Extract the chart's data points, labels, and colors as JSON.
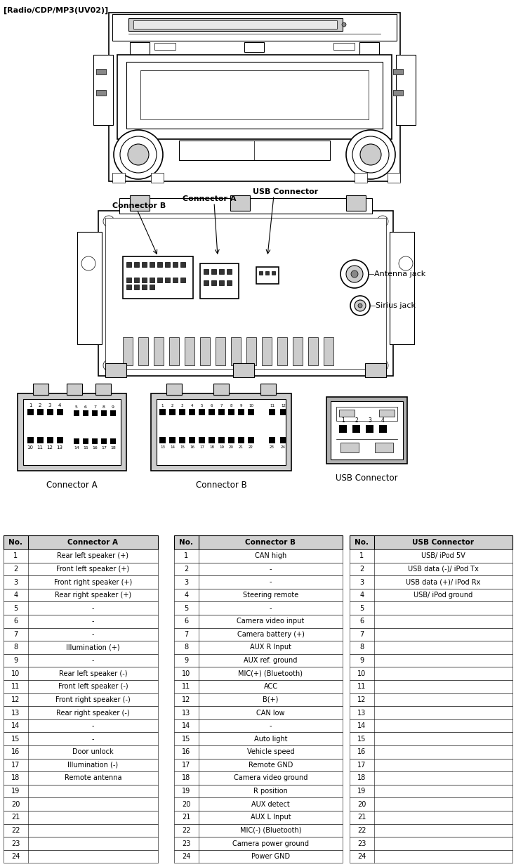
{
  "title": "[Radio/CDP/MP3(UV02)]",
  "conn_a_header": [
    "No.",
    "Connector A"
  ],
  "conn_b_header": [
    "No.",
    "Connector B"
  ],
  "conn_usb_header": [
    "No.",
    "USB Connector"
  ],
  "conn_a_rows": [
    [
      "1",
      "Rear left speaker (+)"
    ],
    [
      "2",
      "Front left speaker (+)"
    ],
    [
      "3",
      "Front right speaker (+)"
    ],
    [
      "4",
      "Rear right speaker (+)"
    ],
    [
      "5",
      "-"
    ],
    [
      "6",
      "-"
    ],
    [
      "7",
      "-"
    ],
    [
      "8",
      "Illumination (+)"
    ],
    [
      "9",
      "-"
    ],
    [
      "10",
      "Rear left speaker (-)"
    ],
    [
      "11",
      "Front left speaker (-)"
    ],
    [
      "12",
      "Front right speaker (-)"
    ],
    [
      "13",
      "Rear right speaker (-)"
    ],
    [
      "14",
      "-"
    ],
    [
      "15",
      "-"
    ],
    [
      "16",
      "Door unlock"
    ],
    [
      "17",
      "Illumination (-)"
    ],
    [
      "18",
      "Remote antenna"
    ],
    [
      "19",
      ""
    ],
    [
      "20",
      ""
    ],
    [
      "21",
      ""
    ],
    [
      "22",
      ""
    ],
    [
      "23",
      ""
    ],
    [
      "24",
      ""
    ]
  ],
  "conn_b_rows": [
    [
      "1",
      "CAN high"
    ],
    [
      "2",
      "-"
    ],
    [
      "3",
      "-"
    ],
    [
      "4",
      "Steering remote"
    ],
    [
      "5",
      "-"
    ],
    [
      "6",
      "Camera video input"
    ],
    [
      "7",
      "Camera battery (+)"
    ],
    [
      "8",
      "AUX R Input"
    ],
    [
      "9",
      "AUX ref. ground"
    ],
    [
      "10",
      "MIC(+) (Bluetooth)"
    ],
    [
      "11",
      "ACC"
    ],
    [
      "12",
      "B(+)"
    ],
    [
      "13",
      "CAN low"
    ],
    [
      "14",
      "-"
    ],
    [
      "15",
      "Auto light"
    ],
    [
      "16",
      "Vehicle speed"
    ],
    [
      "17",
      "Remote GND"
    ],
    [
      "18",
      "Camera video ground"
    ],
    [
      "19",
      "R position"
    ],
    [
      "20",
      "AUX detect"
    ],
    [
      "21",
      "AUX L Input"
    ],
    [
      "22",
      "MIC(-) (Bluetooth)"
    ],
    [
      "23",
      "Camera power ground"
    ],
    [
      "24",
      "Power GND"
    ]
  ],
  "conn_usb_rows": [
    [
      "1",
      "USB/ iPod 5V"
    ],
    [
      "2",
      "USB data (-)/ iPod Tx"
    ],
    [
      "3",
      "USB data (+)/ iPod Rx"
    ],
    [
      "4",
      "USB/ iPod ground"
    ],
    [
      "5",
      ""
    ],
    [
      "6",
      ""
    ],
    [
      "7",
      ""
    ],
    [
      "8",
      ""
    ],
    [
      "9",
      ""
    ],
    [
      "10",
      ""
    ],
    [
      "11",
      ""
    ],
    [
      "12",
      ""
    ],
    [
      "13",
      ""
    ],
    [
      "14",
      ""
    ],
    [
      "15",
      ""
    ],
    [
      "16",
      ""
    ],
    [
      "17",
      ""
    ],
    [
      "18",
      ""
    ],
    [
      "19",
      ""
    ],
    [
      "20",
      ""
    ],
    [
      "21",
      ""
    ],
    [
      "22",
      ""
    ],
    [
      "23",
      ""
    ],
    [
      "24",
      ""
    ]
  ]
}
